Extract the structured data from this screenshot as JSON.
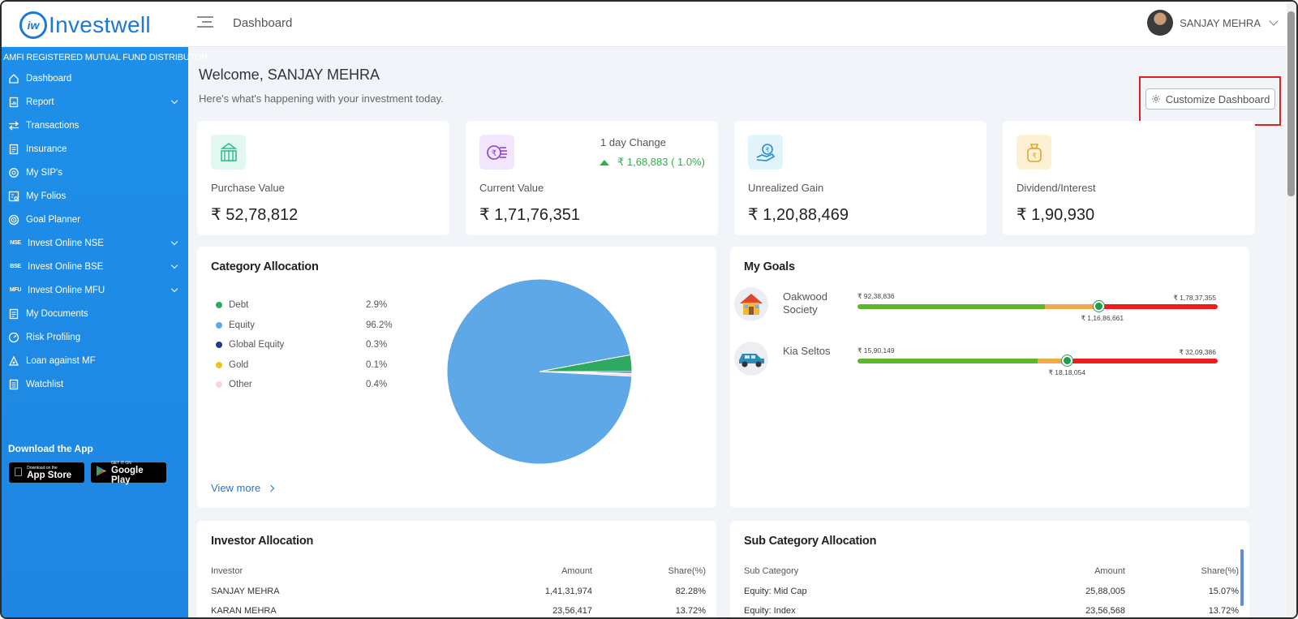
{
  "brand": {
    "logo_mark": "iw",
    "name": "Investwell"
  },
  "header": {
    "title": "Dashboard",
    "user_name": "SANJAY MEHRA"
  },
  "sidebar": {
    "tagline": "AMFI REGISTERED MUTUAL FUND DISTRIBUTOR",
    "items": [
      {
        "label": "Dashboard",
        "icon": "home-icon"
      },
      {
        "label": "Report",
        "icon": "report-icon",
        "expandable": true
      },
      {
        "label": "Transactions",
        "icon": "swap-icon"
      },
      {
        "label": "Insurance",
        "icon": "document-icon"
      },
      {
        "label": "My SIP's",
        "icon": "sip-icon"
      },
      {
        "label": "My Folios",
        "icon": "folio-icon"
      },
      {
        "label": "Goal Planner",
        "icon": "target-icon"
      },
      {
        "label": "Invest Online NSE",
        "icon": "NSE",
        "expandable": true
      },
      {
        "label": "Invest Online BSE",
        "icon": "BSE",
        "expandable": true
      },
      {
        "label": "Invest Online MFU",
        "icon": "MFU",
        "expandable": true
      },
      {
        "label": "My Documents",
        "icon": "document-icon"
      },
      {
        "label": "Risk Profiling",
        "icon": "gauge-icon"
      },
      {
        "label": "Loan against MF",
        "icon": "loan-icon"
      },
      {
        "label": "Watchlist",
        "icon": "list-icon"
      }
    ],
    "download_title": "Download the App",
    "app_store": {
      "small": "Download on the",
      "big": "App Store"
    },
    "google_play": {
      "small": "GET IT ON",
      "big": "Google Play"
    }
  },
  "welcome": {
    "title": "Welcome, SANJAY MEHRA",
    "subtitle": "Here's what's happening with your investment today."
  },
  "customize_label": "Customize Dashboard",
  "stats": [
    {
      "label": "Purchase Value",
      "value": "₹ 52,78,812",
      "icon_bg": "#e3f7f1",
      "icon_color": "#2bbf8e"
    },
    {
      "label": "Current Value",
      "value": "₹ 1,71,76,351",
      "icon_bg": "#f1e6fb",
      "icon_color": "#8a3bd1",
      "change_label": "1 day Change",
      "change_value": "₹ 1,68,883 ( 1.0%)"
    },
    {
      "label": "Unrealized Gain",
      "value": "₹ 1,20,88,469",
      "icon_bg": "#e3f3fc",
      "icon_color": "#1e8fd6"
    },
    {
      "label": "Dividend/Interest",
      "value": "₹ 1,90,930",
      "icon_bg": "#fdf1d3",
      "icon_color": "#e2a52a"
    }
  ],
  "category_allocation": {
    "title": "Category Allocation",
    "view_more": "View more",
    "items": [
      {
        "label": "Debt",
        "pct_text": "2.9%",
        "value": 2.9,
        "color": "#2fa860"
      },
      {
        "label": "Equity",
        "pct_text": "96.2%",
        "value": 96.2,
        "color": "#5fa8e8"
      },
      {
        "label": "Global Equity",
        "pct_text": "0.3%",
        "value": 0.3,
        "color": "#1f3a8f"
      },
      {
        "label": "Gold",
        "pct_text": "0.1%",
        "value": 0.1,
        "color": "#f2c21b"
      },
      {
        "label": "Other",
        "pct_text": "0.4%",
        "value": 0.4,
        "color": "#fbd3dd"
      }
    ]
  },
  "goals": {
    "title": "My Goals",
    "items": [
      {
        "name": "Oakwood Society",
        "icon": "house-icon",
        "min": "₹ 92,38,836",
        "max": "₹ 1,78,37,355",
        "current": "₹ 1,16,86,661",
        "green_frac": 0.52,
        "orange_frac": 0.15
      },
      {
        "name": "Kia Seltos",
        "icon": "car-icon",
        "min": "₹ 15,90,149",
        "max": "₹ 32,09,386",
        "current": "₹ 18,18,054",
        "green_frac": 0.5,
        "orange_frac": 0.08
      }
    ]
  },
  "investor_allocation": {
    "title": "Investor Allocation",
    "headers": [
      "Investor",
      "Amount",
      "Share(%)"
    ],
    "rows": [
      [
        "SANJAY MEHRA",
        "1,41,31,974",
        "82.28%"
      ],
      [
        "KARAN MEHRA",
        "23,56,417",
        "13.72%"
      ]
    ]
  },
  "sub_category_allocation": {
    "title": "Sub Category Allocation",
    "headers": [
      "Sub Category",
      "Amount",
      "Share(%)"
    ],
    "rows": [
      [
        "Equity: Mid Cap",
        "25,88,005",
        "15.07%"
      ],
      [
        "Equity: Index",
        "23,56,568",
        "13.72%"
      ]
    ]
  }
}
